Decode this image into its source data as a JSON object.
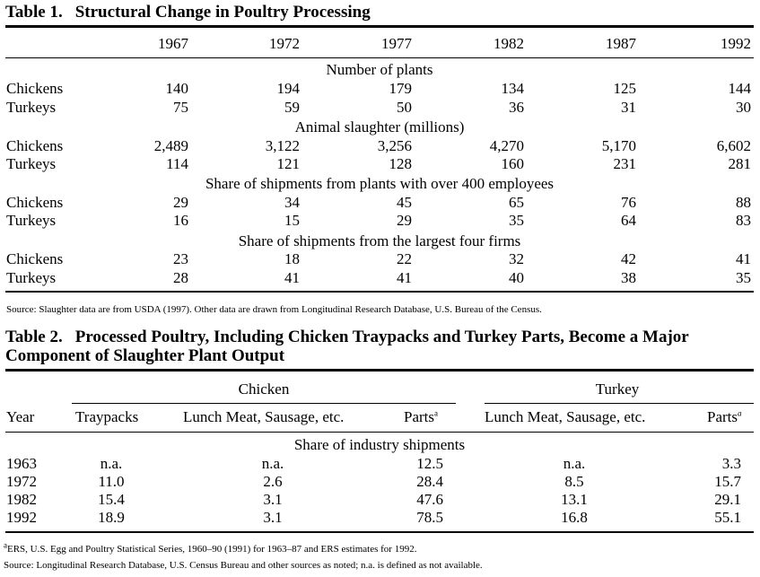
{
  "table1": {
    "number": "Table 1.",
    "title": "Structural Change in Poultry Processing",
    "years": [
      "1967",
      "1972",
      "1977",
      "1982",
      "1987",
      "1992"
    ],
    "sections": [
      {
        "heading": "Number of plants",
        "rows": [
          {
            "label": "Chickens",
            "values": [
              "140",
              "194",
              "179",
              "134",
              "125",
              "144"
            ]
          },
          {
            "label": "Turkeys",
            "values": [
              "75",
              "59",
              "50",
              "36",
              "31",
              "30"
            ]
          }
        ]
      },
      {
        "heading": "Animal slaughter (millions)",
        "rows": [
          {
            "label": "Chickens",
            "values": [
              "2,489",
              "3,122",
              "3,256",
              "4,270",
              "5,170",
              "6,602"
            ]
          },
          {
            "label": "Turkeys",
            "values": [
              "114",
              "121",
              "128",
              "160",
              "231",
              "281"
            ]
          }
        ]
      },
      {
        "heading": "Share of shipments from plants with over 400 employees",
        "rows": [
          {
            "label": "Chickens",
            "values": [
              "29",
              "34",
              "45",
              "65",
              "76",
              "88"
            ]
          },
          {
            "label": "Turkeys",
            "values": [
              "16",
              "15",
              "29",
              "35",
              "64",
              "83"
            ]
          }
        ]
      },
      {
        "heading": "Share of shipments from the largest four firms",
        "rows": [
          {
            "label": "Chickens",
            "values": [
              "23",
              "18",
              "22",
              "32",
              "42",
              "41"
            ]
          },
          {
            "label": "Turkeys",
            "values": [
              "28",
              "41",
              "41",
              "40",
              "38",
              "35"
            ]
          }
        ]
      }
    ],
    "source": "Source: Slaughter data are from USDA (1997). Other data are drawn from Longitudinal Research Database, U.S. Bureau of the Census."
  },
  "table2": {
    "number": "Table 2.",
    "title_line1": "Processed Poultry, Including Chicken Traypacks and Turkey Parts, Become a Major",
    "title_line2": "Component of Slaughter Plant Output",
    "group_chicken": "Chicken",
    "group_turkey": "Turkey",
    "col_year": "Year",
    "col_traypacks": "Traypacks",
    "col_lunch_chicken": "Lunch Meat, Sausage, etc.",
    "col_parts_chicken": "Parts",
    "col_lunch_turkey": "Lunch Meat, Sausage, etc.",
    "col_parts_turkey": "Parts",
    "sup_a": "a",
    "section_heading": "Share of industry shipments",
    "rows": [
      {
        "year": "1963",
        "values": [
          "n.a.",
          "n.a.",
          "12.5",
          "n.a.",
          "3.3"
        ]
      },
      {
        "year": "1972",
        "values": [
          "11.0",
          "2.6",
          "28.4",
          "8.5",
          "15.7"
        ]
      },
      {
        "year": "1982",
        "values": [
          "15.4",
          "3.1",
          "47.6",
          "13.1",
          "29.1"
        ]
      },
      {
        "year": "1992",
        "values": [
          "18.9",
          "3.1",
          "78.5",
          "16.8",
          "55.1"
        ]
      }
    ],
    "footnote_a": "ERS, U.S. Egg and Poultry Statistical Series, 1960–90 (1991) for 1963–87 and ERS estimates for 1992.",
    "source": "Source: Longitudinal Research Database, U.S. Census Bureau and other sources as noted; n.a. is defined as not available."
  }
}
